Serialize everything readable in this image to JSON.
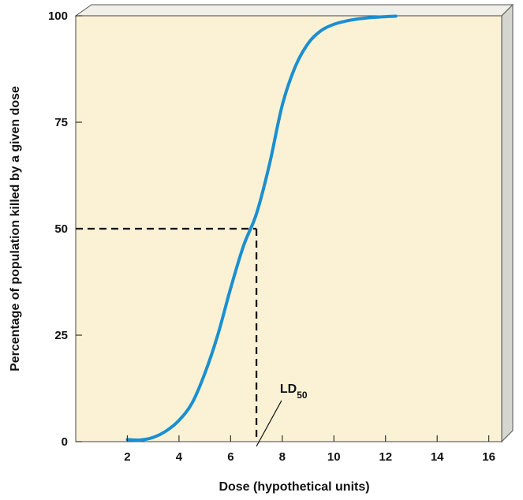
{
  "chart_data": {
    "type": "line",
    "title": "",
    "xlabel": "Dose (hypothetical units)",
    "ylabel": "Percentage of population killed by a given dose",
    "xlim": [
      0,
      16
    ],
    "ylim": [
      0,
      100
    ],
    "x_ticks": [
      2,
      4,
      6,
      8,
      10,
      12,
      14,
      16
    ],
    "x_tick_labels": [
      "2",
      "4",
      "6",
      "8",
      "10",
      "12",
      "14",
      "16"
    ],
    "y_ticks": [
      0,
      25,
      50,
      75,
      100
    ],
    "y_tick_labels": [
      "0",
      "25",
      "50",
      "75",
      "100"
    ],
    "series": [
      {
        "color": "#1a8fd1",
        "x": [
          2.0,
          2.5,
          3.0,
          3.5,
          4.0,
          4.5,
          5.0,
          5.5,
          6.0,
          6.5,
          7.0,
          7.5,
          8.0,
          8.5,
          9.0,
          9.5,
          10.0,
          10.5,
          11.0,
          11.5,
          12.0,
          12.4
        ],
        "y": [
          0.5,
          0.4,
          1.0,
          2.5,
          5.0,
          9.0,
          16.0,
          25.0,
          36.0,
          46.0,
          53.5,
          65.0,
          79.0,
          88.0,
          93.5,
          96.5,
          98.0,
          98.8,
          99.3,
          99.6,
          99.8,
          99.9
        ]
      }
    ],
    "reference": {
      "x": 7.0,
      "y": 50,
      "style": "dashed",
      "color": "#000000"
    },
    "annotation": {
      "text": "LD",
      "subscript": "50",
      "x": 8.4,
      "y": 11.5,
      "pointer_to_x": 7.0
    },
    "background_color": "#fbf2d6",
    "frame_color": "#f0efe8",
    "grid": false,
    "legend": "none"
  }
}
